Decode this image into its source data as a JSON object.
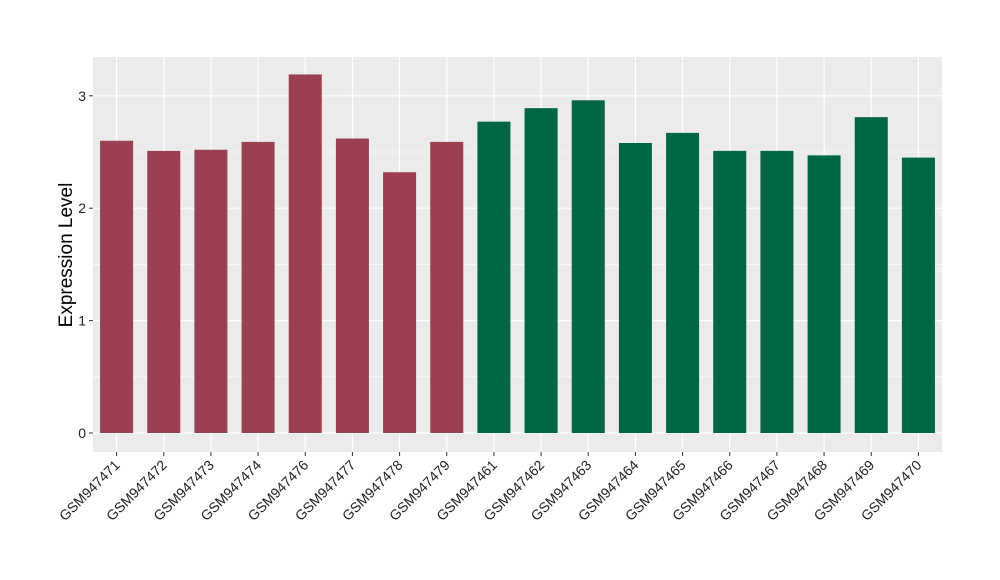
{
  "chart_data": {
    "type": "bar",
    "title": "",
    "xlabel": "",
    "ylabel": "Expression Level",
    "ylim": [
      -0.16,
      3.33
    ],
    "yticks": [
      0,
      1,
      2,
      3
    ],
    "grid": true,
    "categories": [
      "GSM947471",
      "GSM947472",
      "GSM947473",
      "GSM947474",
      "GSM947476",
      "GSM947477",
      "GSM947478",
      "GSM947479",
      "GSM947461",
      "GSM947462",
      "GSM947463",
      "GSM947464",
      "GSM947465",
      "GSM947466",
      "GSM947467",
      "GSM947468",
      "GSM947469",
      "GSM947470"
    ],
    "values": [
      2.6,
      2.51,
      2.52,
      2.59,
      3.19,
      2.62,
      2.32,
      2.59,
      2.77,
      2.89,
      2.96,
      2.58,
      2.67,
      2.51,
      2.51,
      2.47,
      2.81,
      2.45
    ],
    "groups": [
      "a",
      "a",
      "a",
      "a",
      "a",
      "a",
      "a",
      "a",
      "b",
      "b",
      "b",
      "b",
      "b",
      "b",
      "b",
      "b",
      "b",
      "b"
    ],
    "colors": {
      "a": "#9a4050",
      "b": "#006644"
    },
    "panel_background": "#ebebeb",
    "grid_color": "#ffffff"
  }
}
